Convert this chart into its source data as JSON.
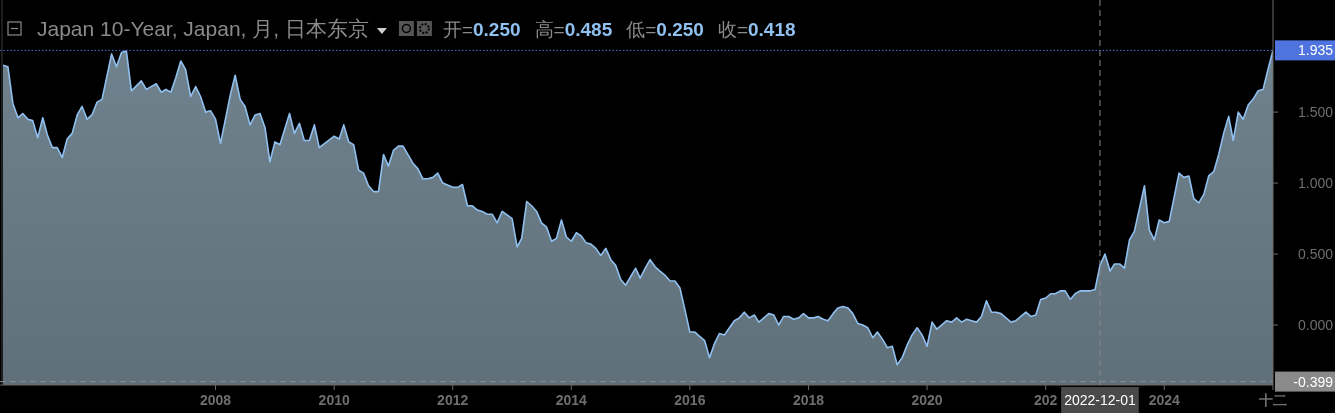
{
  "chart_data": {
    "type": "area",
    "title": "Japan 10-Year, Japan, 月, 日本东京",
    "annotations": [
      "开=0.250",
      "高=0.485",
      "低=0.250",
      "收=0.418"
    ],
    "color": "#8fc0ef",
    "x": [
      "2004-06",
      "2004-07",
      "2004-08",
      "2004-09",
      "2004-10",
      "2004-11",
      "2004-12",
      "2005-01",
      "2005-02",
      "2005-03",
      "2005-04",
      "2005-05",
      "2005-06",
      "2005-07",
      "2005-08",
      "2005-09",
      "2005-10",
      "2005-11",
      "2005-12",
      "2006-01",
      "2006-02",
      "2006-04",
      "2006-05",
      "2006-06",
      "2006-07",
      "2006-08",
      "2006-10",
      "2006-11",
      "2007-01",
      "2007-02",
      "2007-03",
      "2007-04",
      "2007-05",
      "2007-06",
      "2007-07",
      "2007-08",
      "2007-09",
      "2007-10",
      "2007-11",
      "2007-12",
      "2008-01",
      "2008-02",
      "2008-04",
      "2008-05",
      "2008-06",
      "2008-07",
      "2008-08",
      "2008-09",
      "2008-10",
      "2008-11",
      "2008-12",
      "2009-01",
      "2009-02",
      "2009-04",
      "2009-05",
      "2009-06",
      "2009-07",
      "2009-08",
      "2009-09",
      "2009-10",
      "2010-01",
      "2010-02",
      "2010-03",
      "2010-04",
      "2010-05",
      "2010-06",
      "2010-07",
      "2010-08",
      "2010-09",
      "2010-10",
      "2010-11",
      "2010-12",
      "2011-01",
      "2011-02",
      "2011-03",
      "2011-05",
      "2011-06",
      "2011-07",
      "2011-08",
      "2011-09",
      "2011-10",
      "2011-11",
      "2012-01",
      "2012-02",
      "2012-03",
      "2012-04",
      "2012-05",
      "2012-06",
      "2012-07",
      "2012-08",
      "2012-09",
      "2012-10",
      "2012-11",
      "2013-01",
      "2013-02",
      "2013-03",
      "2013-04",
      "2013-05",
      "2013-06",
      "2013-07",
      "2013-08",
      "2013-09",
      "2013-10",
      "2013-11",
      "2013-12",
      "2014-01",
      "2014-02",
      "2014-03",
      "2014-04",
      "2014-05",
      "2014-06",
      "2014-07",
      "2014-08",
      "2014-09",
      "2014-10",
      "2014-11",
      "2014-12",
      "2015-01",
      "2015-02",
      "2015-03",
      "2015-04",
      "2015-05",
      "2015-06",
      "2015-07",
      "2015-08",
      "2015-09",
      "2015-10",
      "2015-11",
      "2015-12",
      "2016-01",
      "2016-02",
      "2016-03",
      "2016-04",
      "2016-05",
      "2016-06",
      "2016-07",
      "2016-08",
      "2016-09",
      "2016-10",
      "2016-11",
      "2016-12",
      "2017-01",
      "2017-02",
      "2017-03",
      "2017-04",
      "2017-05",
      "2017-06",
      "2017-07",
      "2017-08",
      "2017-09",
      "2017-10",
      "2017-11",
      "2017-12",
      "2018-01",
      "2018-02",
      "2018-03",
      "2018-04",
      "2018-05",
      "2018-06",
      "2018-07",
      "2018-08",
      "2018-09",
      "2018-10",
      "2018-11",
      "2018-12",
      "2019-01",
      "2019-02",
      "2019-03",
      "2019-04",
      "2019-05",
      "2019-06",
      "2019-07",
      "2019-08",
      "2019-09",
      "2019-10",
      "2019-11",
      "2019-12",
      "2020-01",
      "2020-02",
      "2020-03",
      "2020-04",
      "2020-05",
      "2020-06",
      "2020-07",
      "2020-08",
      "2020-09",
      "2020-10",
      "2020-11",
      "2020-12",
      "2021-01",
      "2021-02",
      "2021-03",
      "2021-04",
      "2021-05",
      "2021-06",
      "2021-07",
      "2021-08",
      "2021-09",
      "2021-10",
      "2021-11",
      "2021-12",
      "2022-01",
      "2022-02",
      "2022-03",
      "2022-04",
      "2022-05",
      "2022-06",
      "2022-07",
      "2022-08",
      "2022-09",
      "2022-10",
      "2022-11",
      "2022-12",
      "2023-01",
      "2023-02",
      "2023-03",
      "2023-04",
      "2023-05",
      "2023-06",
      "2023-07",
      "2023-09",
      "2023-10",
      "2023-11",
      "2023-12",
      "2024-01",
      "2024-02",
      "2024-04",
      "2024-05",
      "2024-06",
      "2024-07",
      "2024-08",
      "2024-09",
      "2024-10",
      "2024-11",
      "2024-12",
      "2025-01",
      "2025-02",
      "2025-03",
      "2025-04",
      "2025-05",
      "2025-06",
      "2025-07",
      "2025-08",
      "2025-09",
      "2025-10",
      "2025-11"
    ],
    "values": [
      1.83,
      1.82,
      1.56,
      1.46,
      1.49,
      1.45,
      1.44,
      1.32,
      1.46,
      1.34,
      1.25,
      1.25,
      1.18,
      1.31,
      1.35,
      1.48,
      1.54,
      1.45,
      1.48,
      1.57,
      1.59,
      1.91,
      1.82,
      1.92,
      1.93,
      1.65,
      1.72,
      1.66,
      1.7,
      1.64,
      1.66,
      1.64,
      1.74,
      1.86,
      1.8,
      1.61,
      1.68,
      1.61,
      1.5,
      1.51,
      1.45,
      1.28,
      1.62,
      1.76,
      1.59,
      1.54,
      1.41,
      1.48,
      1.49,
      1.39,
      1.15,
      1.29,
      1.27,
      1.49,
      1.35,
      1.42,
      1.3,
      1.3,
      1.41,
      1.25,
      1.33,
      1.31,
      1.41,
      1.29,
      1.27,
      1.09,
      1.07,
      0.98,
      0.94,
      0.94,
      1.2,
      1.12,
      1.23,
      1.26,
      1.26,
      1.14,
      1.1,
      1.03,
      1.03,
      1.04,
      1.07,
      1.0,
      0.97,
      0.97,
      0.99,
      0.84,
      0.84,
      0.81,
      0.8,
      0.78,
      0.78,
      0.72,
      0.8,
      0.75,
      0.55,
      0.61,
      0.87,
      0.84,
      0.8,
      0.72,
      0.69,
      0.59,
      0.61,
      0.74,
      0.62,
      0.59,
      0.65,
      0.63,
      0.58,
      0.57,
      0.54,
      0.49,
      0.54,
      0.46,
      0.42,
      0.32,
      0.28,
      0.34,
      0.4,
      0.33,
      0.4,
      0.46,
      0.41,
      0.38,
      0.35,
      0.31,
      0.31,
      0.26,
      0.11,
      -0.05,
      -0.05,
      -0.08,
      -0.11,
      -0.23,
      -0.13,
      -0.06,
      -0.07,
      -0.02,
      0.03,
      0.05,
      0.09,
      0.05,
      0.07,
      0.02,
      0.05,
      0.08,
      0.07,
      0.0,
      0.06,
      0.06,
      0.04,
      0.05,
      0.08,
      0.05,
      0.05,
      0.06,
      0.04,
      0.03,
      0.08,
      0.12,
      0.13,
      0.12,
      0.08,
      0.01,
      0.0,
      -0.02,
      -0.09,
      -0.05,
      -0.1,
      -0.16,
      -0.15,
      -0.28,
      -0.23,
      -0.14,
      -0.07,
      -0.02,
      -0.07,
      -0.15,
      0.02,
      -0.03,
      0.0,
      0.03,
      0.02,
      0.05,
      0.02,
      0.04,
      0.03,
      0.02,
      0.06,
      0.17,
      0.09,
      0.09,
      0.08,
      0.05,
      0.02,
      0.03,
      0.06,
      0.09,
      0.06,
      0.07,
      0.18,
      0.19,
      0.22,
      0.22,
      0.24,
      0.24,
      0.18,
      0.22,
      0.24,
      0.24,
      0.24,
      0.25,
      0.418,
      0.5,
      0.38,
      0.43,
      0.43,
      0.4,
      0.6,
      0.66,
      0.98,
      0.67,
      0.6,
      0.74,
      0.72,
      0.73,
      1.07,
      1.04,
      1.05,
      0.89,
      0.86,
      0.92,
      1.05,
      1.08,
      1.2,
      1.35,
      1.47,
      1.3,
      1.5,
      1.45,
      1.55,
      1.59,
      1.65,
      1.66,
      1.8,
      1.935
    ],
    "xlim": [
      "2004-06",
      "2025-11"
    ],
    "xticks": [
      "2008",
      "2010",
      "2012",
      "2014",
      "2016",
      "2018",
      "2020",
      {
        "value": "2022",
        "label": "202"
      },
      "2024",
      {
        "value": "2025-11",
        "label": "十二"
      }
    ],
    "ylim": [
      -0.423,
      2.29
    ],
    "yticks": [
      {
        "value": 0,
        "label": "0.000"
      },
      {
        "value": 0.5,
        "label": "0.500"
      },
      {
        "value": 1,
        "label": "1.000"
      },
      {
        "value": 1.5,
        "label": "1.500"
      }
    ],
    "ref_lines": [
      {
        "axis": "y",
        "value": 1.935,
        "label": "1.935",
        "color": "#4f74e0",
        "line_style": "dotted"
      },
      {
        "axis": "y",
        "value": -0.399,
        "label": "-0.399",
        "color": "#8a8a8a",
        "line_style": "dashed"
      },
      {
        "axis": "x",
        "value": "2022-12-01",
        "label": "2022-12-01",
        "color": "#8a8a8a",
        "line_style": "dashed"
      }
    ],
    "grid": false
  }
}
